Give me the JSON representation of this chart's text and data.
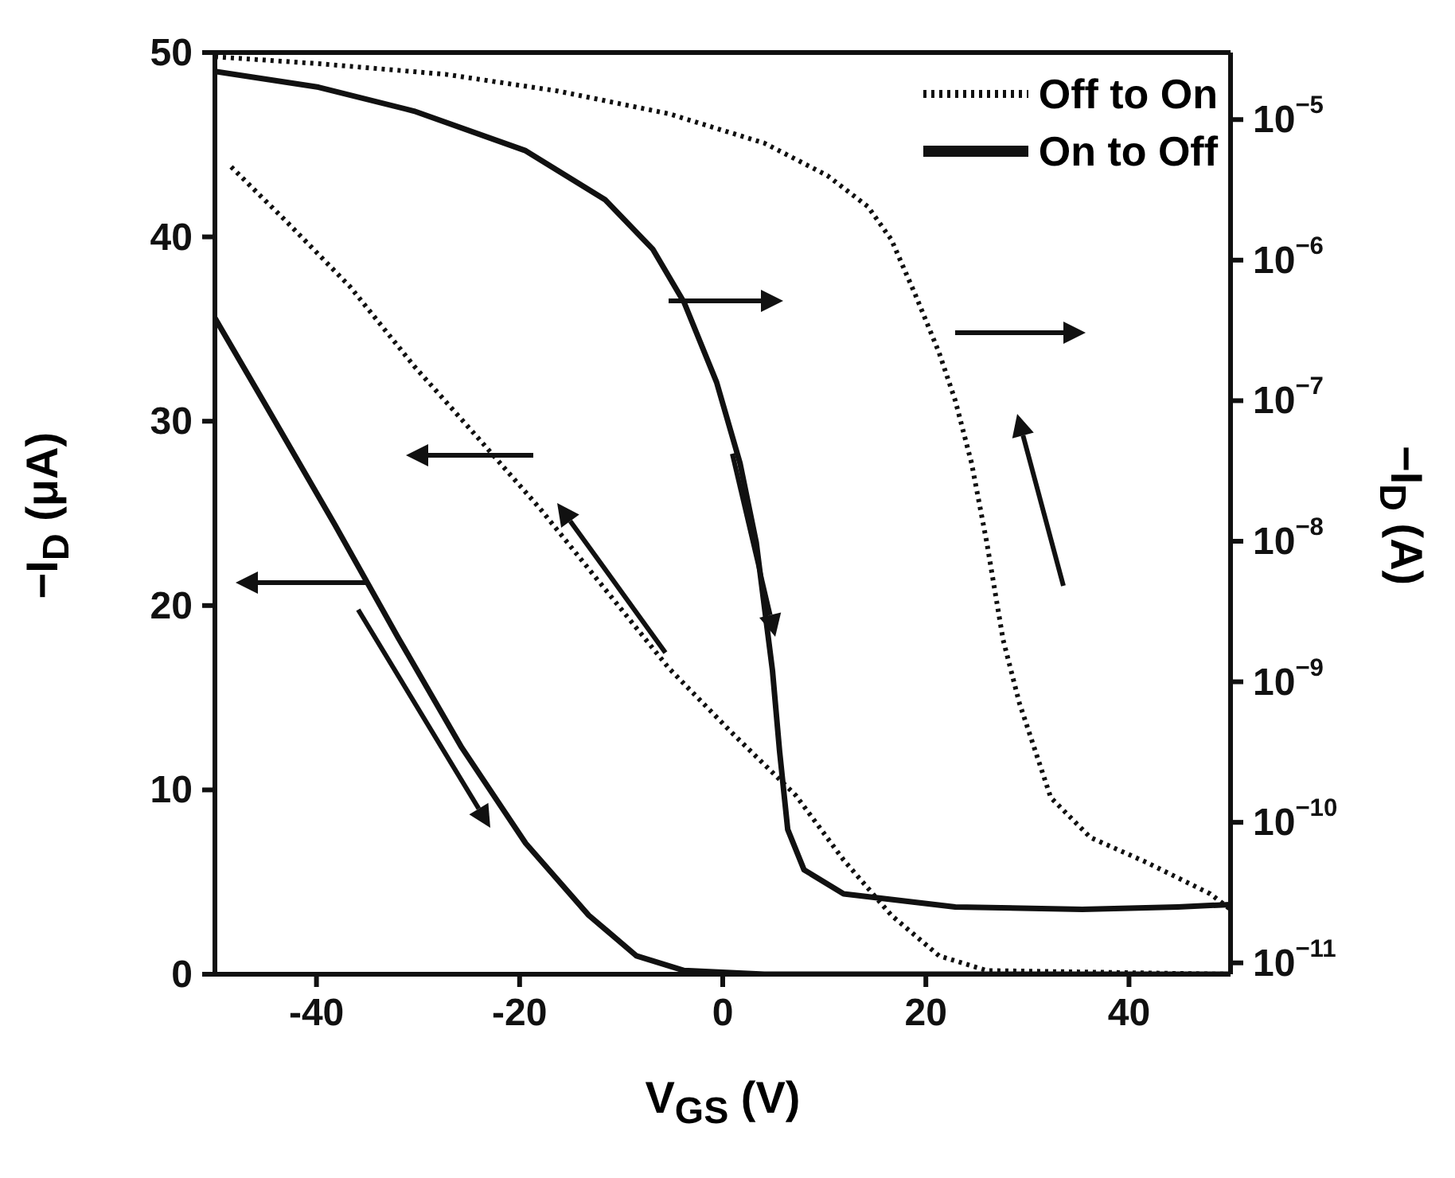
{
  "chart_data": {
    "type": "line",
    "xlabel": "V$_{GS}$ (V)",
    "ylabel": "−I$_{D}$ (μA)",
    "y2label": "−I$_{D}$ (A)",
    "xlim": [
      -50,
      50
    ],
    "xticks": [
      -40,
      -20,
      0,
      20,
      40
    ],
    "ylim": [
      0,
      50
    ],
    "yticks": [
      0,
      10,
      20,
      30,
      40,
      50
    ],
    "y2lim": [
      8.3e-12,
      3e-05
    ],
    "y2ticks": [
      {
        "value": 1e-11,
        "label": "10$^{−11}$"
      },
      {
        "value": 1e-10,
        "label": "10$^{−10}$"
      },
      {
        "value": 1e-09,
        "label": "10$^{−9}$"
      },
      {
        "value": 1e-08,
        "label": "10$^{−8}$"
      },
      {
        "value": 1e-07,
        "label": "10$^{−7}$"
      },
      {
        "value": 1e-06,
        "label": "10$^{−6}$"
      },
      {
        "value": 1e-05,
        "label": "10$^{−5}$"
      }
    ],
    "log": "y2",
    "legend": "top right",
    "series": [
      {
        "name": "Off to On",
        "color": "#111111",
        "line_style": "dotted",
        "axis": "y2",
        "x": [
          -50,
          -39.8,
          -27.3,
          -16.3,
          -5.3,
          4.1,
          10.3,
          14.3,
          16.6,
          19.0,
          21.3,
          22.9,
          24.5,
          26.0,
          27.6,
          29.2,
          32.3,
          36.2,
          41.7,
          48.0,
          50
        ],
        "values": [
          2.8e-05,
          2.5e-05,
          2.1e-05,
          1.6e-05,
          1.1e-05,
          6.8e-06,
          4e-06,
          2.4e-06,
          1.4e-06,
          5.6e-07,
          2.2e-07,
          1e-07,
          3.6e-08,
          9.8e-09,
          2e-09,
          7.1e-10,
          1.5e-10,
          7.8e-11,
          5.2e-11,
          3.1e-11,
          2.4e-11
        ]
      },
      {
        "name": "On to Off",
        "color": "#111111",
        "line_style": "solid",
        "axis": "y2",
        "x": [
          -50,
          -39.8,
          -30.4,
          -19.4,
          -11.6,
          -6.9,
          -3.8,
          -0.6,
          1.7,
          3.3,
          4.9,
          5.6,
          6.4,
          8.0,
          11.9,
          22.9,
          35.4,
          44.8,
          50
        ],
        "values": [
          2.2e-05,
          1.7e-05,
          1.15e-05,
          6e-06,
          2.7e-06,
          1.2e-06,
          5e-07,
          1.35e-07,
          3.6e-08,
          9.8e-09,
          1.2e-09,
          3.2e-10,
          8.9e-11,
          4.6e-11,
          3.1e-11,
          2.5e-11,
          2.4e-11,
          2.5e-11,
          2.6e-11
        ]
      },
      {
        "color": "#111111",
        "line_style": "dotted",
        "axis": "y",
        "x": [
          -48.4,
          -42.9,
          -36.7,
          -30.4,
          -24.1,
          -17.9,
          -11.6,
          -5.3,
          0.9,
          7.2,
          11.9,
          16.6,
          21.3,
          26.0,
          50
        ],
        "values": [
          43.8,
          40.8,
          37.3,
          33.0,
          29.1,
          25.2,
          20.9,
          16.6,
          13.1,
          9.7,
          6.2,
          3.2,
          1.0,
          0.2,
          0
        ]
      },
      {
        "color": "#111111",
        "line_style": "solid",
        "axis": "y",
        "x": [
          -50,
          -44.5,
          -38.2,
          -32.0,
          -25.7,
          -19.4,
          -13.2,
          -8.5,
          -3.8,
          4.1,
          50
        ],
        "values": [
          35.6,
          30.4,
          24.4,
          18.3,
          12.3,
          7.1,
          3.2,
          1.0,
          0.2,
          0,
          0
        ]
      }
    ]
  }
}
